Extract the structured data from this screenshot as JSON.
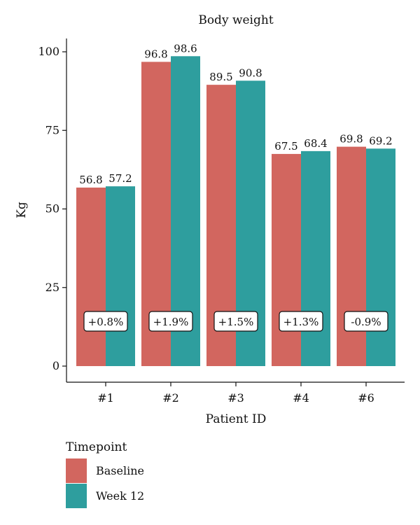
{
  "chart_data": {
    "type": "bar",
    "title": "Body weight",
    "xlabel": "Patient ID",
    "ylabel": "Kg",
    "ylim": [
      0,
      100
    ],
    "yticks": [
      0,
      25,
      50,
      75,
      100
    ],
    "categories": [
      "#1",
      "#2",
      "#3",
      "#4",
      "#6"
    ],
    "series": [
      {
        "name": "Baseline",
        "color": "#D2665F",
        "values": [
          56.8,
          96.8,
          89.5,
          67.5,
          69.8
        ],
        "labels": [
          "56.8",
          "96.8",
          "89.5",
          "67.5",
          "69.8"
        ]
      },
      {
        "name": "Week 12",
        "color": "#2E9E9E",
        "values": [
          57.2,
          98.6,
          90.8,
          68.4,
          69.2
        ],
        "labels": [
          "57.2",
          "98.6",
          "90.8",
          "68.4",
          "69.2"
        ]
      }
    ],
    "change_labels": [
      "+0.8%",
      "+1.9%",
      "+1.5%",
      "+1.3%",
      "-0.9%"
    ],
    "legend": {
      "title": "Timepoint",
      "placement": "bottom-left"
    },
    "grid": false
  }
}
